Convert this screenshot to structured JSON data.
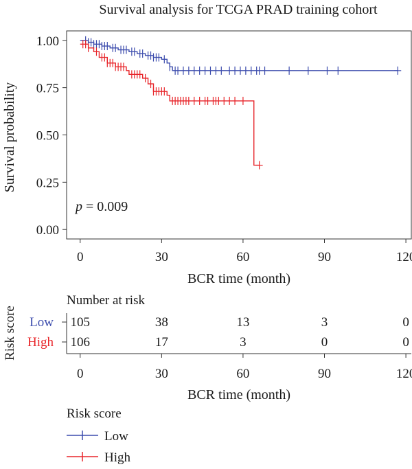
{
  "chart_data": {
    "type": "line",
    "title": "Survival analysis for TCGA PRAD training cohort",
    "xlabel": "BCR time (month)",
    "ylabel": "Survival probability",
    "xlim": [
      -5,
      122
    ],
    "ylim": [
      -0.05,
      1.05
    ],
    "x_ticks": [
      "0",
      "30",
      "60",
      "90",
      "120"
    ],
    "y_ticks": [
      "0.00",
      "0.25",
      "0.50",
      "0.75",
      "1.00"
    ],
    "grid": false,
    "annotation": {
      "prefix": "p",
      "text": " = 0.009"
    },
    "series": [
      {
        "name": "Low",
        "color": "#3c4cad",
        "steps": [
          [
            0,
            1.0
          ],
          [
            3,
            0.99
          ],
          [
            5,
            0.98
          ],
          [
            8,
            0.97
          ],
          [
            11,
            0.96
          ],
          [
            14,
            0.95
          ],
          [
            18,
            0.94
          ],
          [
            21,
            0.93
          ],
          [
            24,
            0.92
          ],
          [
            27,
            0.91
          ],
          [
            30,
            0.9
          ],
          [
            32,
            0.88
          ],
          [
            33,
            0.86
          ],
          [
            34,
            0.84
          ],
          [
            117,
            0.84
          ]
        ],
        "censor_x": [
          2,
          3,
          4,
          5,
          6,
          7,
          8,
          9,
          10,
          12,
          13,
          15,
          16,
          17,
          19,
          20,
          22,
          23,
          25,
          26,
          27,
          28,
          29,
          31,
          33,
          35,
          36,
          38,
          40,
          42,
          44,
          46,
          48,
          50,
          52,
          55,
          57,
          59,
          61,
          63,
          65,
          66,
          68,
          77,
          84,
          91,
          95,
          117
        ]
      },
      {
        "name": "High",
        "color": "#e8252a",
        "steps": [
          [
            0,
            0.98
          ],
          [
            3,
            0.96
          ],
          [
            5,
            0.94
          ],
          [
            7,
            0.91
          ],
          [
            10,
            0.88
          ],
          [
            13,
            0.86
          ],
          [
            17,
            0.84
          ],
          [
            18,
            0.82
          ],
          [
            23,
            0.8
          ],
          [
            25,
            0.77
          ],
          [
            27,
            0.73
          ],
          [
            32,
            0.71
          ],
          [
            33,
            0.68
          ],
          [
            64,
            0.68
          ],
          [
            64,
            0.34
          ],
          [
            66,
            0.34
          ]
        ],
        "censor_x": [
          1,
          2,
          3,
          6,
          8,
          9,
          10,
          11,
          12,
          13,
          14,
          15,
          16,
          19,
          20,
          21,
          22,
          24,
          26,
          27,
          28,
          29,
          30,
          31,
          34,
          35,
          36,
          37,
          38,
          39,
          40,
          42,
          44,
          46,
          47,
          49,
          50,
          51,
          53,
          55,
          57,
          60,
          66
        ]
      }
    ]
  },
  "risk_table": {
    "title": "Number at risk",
    "ylabel": "Risk score",
    "xlabel": "BCR time (month)",
    "x_ticks": [
      "0",
      "30",
      "60",
      "90",
      "120"
    ],
    "times": [
      0,
      30,
      60,
      90,
      120
    ],
    "rows": [
      {
        "label": "Low",
        "color": "#3c4cad",
        "counts": [
          "105",
          "38",
          "13",
          "3",
          "0"
        ]
      },
      {
        "label": "High",
        "color": "#e8252a",
        "counts": [
          "106",
          "17",
          "3",
          "0",
          "0"
        ]
      }
    ]
  },
  "legend": {
    "title": "Risk score",
    "items": [
      {
        "label": "Low",
        "color": "#3c4cad"
      },
      {
        "label": "High",
        "color": "#e8252a"
      }
    ]
  }
}
